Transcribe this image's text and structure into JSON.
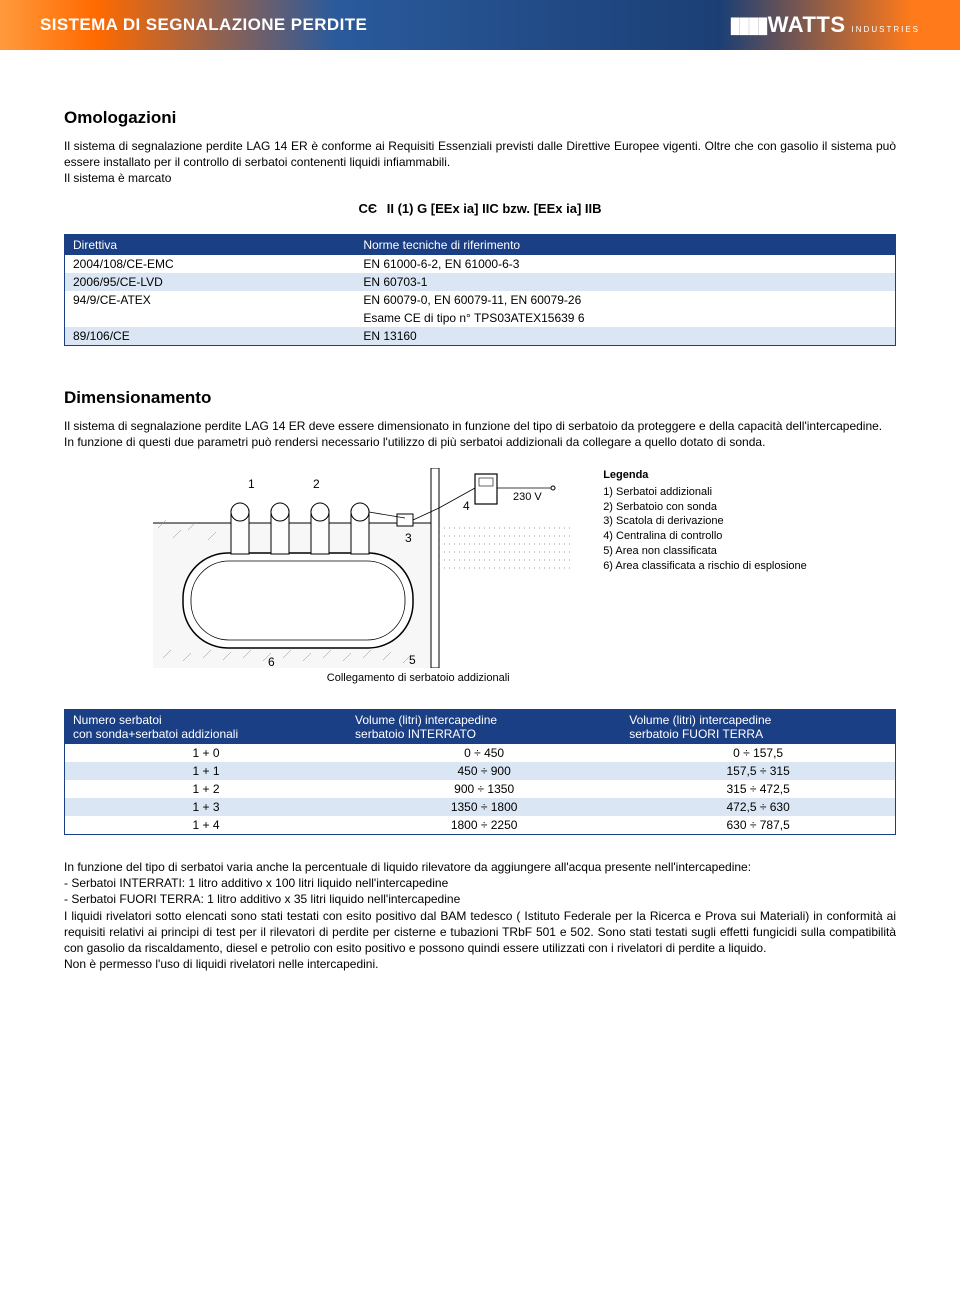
{
  "header": {
    "title": "SISTEMA DI SEGNALAZIONE PERDITE",
    "brand_wave": "▮▮▮▮",
    "brand_name": "WATTS",
    "brand_sub": "INDUSTRIES"
  },
  "omolog": {
    "heading": "Omologazioni",
    "p1": "Il sistema di segnalazione perdite LAG 14 ER è conforme ai Requisiti Essenziali previsti dalle Direttive Europee vigenti. Oltre che con gasolio il sistema può essere installato per il controllo di serbatoi contenenti liquidi infiammabili.",
    "p2": "Il sistema è marcato",
    "ce_line": "II (1) G [EEx ia] IIC bzw. [EEx ia] IIB"
  },
  "dir_table": {
    "header_left": "Direttiva",
    "header_right": "Norme tecniche di riferimento",
    "rows": [
      {
        "c1": "2004/108/CE-EMC",
        "c2": "EN 61000-6-2, EN 61000-6-3"
      },
      {
        "c1": "2006/95/CE-LVD",
        "c2": "EN 60703-1"
      },
      {
        "c1": "94/9/CE-ATEX",
        "c2": "EN 60079-0, EN 60079-11, EN 60079-26"
      },
      {
        "c1": "",
        "c2": "Esame CE di tipo n° TPS03ATEX15639 6"
      },
      {
        "c1": "89/106/CE",
        "c2": "EN 13160"
      }
    ],
    "alt_indices": [
      1,
      4
    ]
  },
  "dimens": {
    "heading": "Dimensionamento",
    "p1": "Il sistema di segnalazione perdite LAG 14 ER deve essere dimensionato in funzione del tipo di serbatoio da proteggere e della capacità dell'intercapedine.",
    "p2": "In funzione di questi due parametri può rendersi necessario l'utilizzo di più serbatoi addizionali da collegare a quello dotato di sonda."
  },
  "diagram": {
    "labels": {
      "n1": "1",
      "n2": "2",
      "n3": "3",
      "n4": "4",
      "n5": "5",
      "n6": "6",
      "volt": "230 V"
    },
    "caption": "Collegamento di serbatoio addizionali",
    "legend_title": "Legenda",
    "legend": [
      "1) Serbatoi addizionali",
      "2) Serbatoio con sonda",
      "3) Scatola di derivazione",
      "4) Centralina di controllo",
      "5) Area non classificata",
      "6) Area classificata a rischio di esplosione"
    ]
  },
  "vol_table": {
    "h1a": "Numero serbatoi",
    "h1b": "con sonda+serbatoi addizionali",
    "h2a": "Volume (litri) intercapedine",
    "h2b": "serbatoio INTERRATO",
    "h3a": "Volume (litri) intercapedine",
    "h3b": "serbatoio FUORI TERRA",
    "rows": [
      {
        "c1": "1 + 0",
        "c2": "0 ÷ 450",
        "c3": "0 ÷ 157,5"
      },
      {
        "c1": "1 + 1",
        "c2": "450 ÷ 900",
        "c3": "157,5 ÷ 315"
      },
      {
        "c1": "1 + 2",
        "c2": "900 ÷ 1350",
        "c3": "315 ÷ 472,5"
      },
      {
        "c1": "1 + 3",
        "c2": "1350 ÷ 1800",
        "c3": "472,5 ÷ 630"
      },
      {
        "c1": "1 + 4",
        "c2": "1800 ÷ 2250",
        "c3": "630 ÷ 787,5"
      }
    ],
    "alt_indices": [
      1,
      3
    ]
  },
  "footer": {
    "p": "In funzione del tipo di serbatoi varia anche la percentuale di liquido rilevatore da aggiungere all'acqua presente nell'intercapedine:",
    "li1": "- Serbatoi INTERRATI: 1 litro additivo x 100 litri liquido nell'intercapedine",
    "li2": "- Serbatoi FUORI TERRA: 1 litro additivo x 35 litri liquido nell'intercapedine",
    "p2": "I liquidi rivelatori sotto elencati sono stati testati con esito positivo dal BAM tedesco ( Istituto Federale per la Ricerca e Prova sui Materiali) in conformità ai requisiti relativi ai principi di test per il rilevatori di perdite per cisterne e tubazioni TRbF 501 e 502. Sono stati testati sugli effetti fungicidi sulla compatibilità con gasolio da riscaldamento, diesel e petrolio con esito positivo e possono quindi essere utilizzati con i rivelatori di perdite a liquido.",
    "p3": "Non è permesso l'uso di liquidi rivelatori nelle intercapedini."
  }
}
